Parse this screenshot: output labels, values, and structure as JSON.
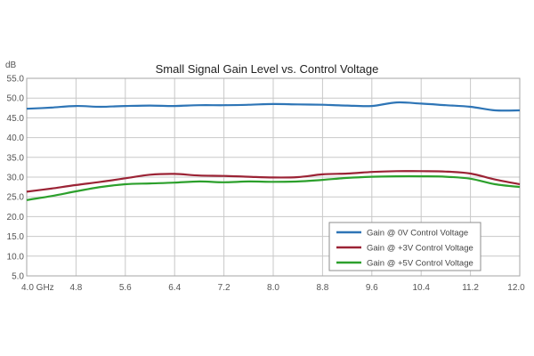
{
  "chart_data": {
    "type": "line",
    "title": "Small Signal Gain Level vs. Control Voltage",
    "ylabel": "dB",
    "xlabel": "",
    "xlim": [
      4.0,
      12.0
    ],
    "ylim": [
      5.0,
      55.0
    ],
    "x_ticks": [
      "4.0  GHz",
      "4.8",
      "5.6",
      "6.4",
      "7.2",
      "8.0",
      "8.8",
      "9.6",
      "10.4",
      "11.2",
      "12.0"
    ],
    "x_tick_values": [
      4.0,
      4.8,
      5.6,
      6.4,
      7.2,
      8.0,
      8.8,
      9.6,
      10.4,
      11.2,
      12.0
    ],
    "y_ticks": [
      "5.0",
      "10.0",
      "15.0",
      "20.0",
      "25.0",
      "30.0",
      "35.0",
      "40.0",
      "45.0",
      "50.0",
      "55.0"
    ],
    "y_tick_values": [
      5,
      10,
      15,
      20,
      25,
      30,
      35,
      40,
      45,
      50,
      55
    ],
    "grid": true,
    "legend_position": "bottom-right",
    "x": [
      4.0,
      4.4,
      4.8,
      5.2,
      5.6,
      6.0,
      6.4,
      6.8,
      7.2,
      7.6,
      8.0,
      8.4,
      8.8,
      9.2,
      9.6,
      10.0,
      10.4,
      10.8,
      11.2,
      11.6,
      12.0
    ],
    "series": [
      {
        "name": "Gain @ 0V Control Voltage",
        "color": "#2E75B6",
        "values": [
          47.3,
          47.6,
          48.0,
          47.8,
          48.0,
          48.1,
          48.0,
          48.2,
          48.2,
          48.3,
          48.5,
          48.4,
          48.3,
          48.1,
          48.0,
          48.9,
          48.6,
          48.2,
          47.8,
          46.9,
          46.9
        ]
      },
      {
        "name": "Gain @ +3V Control Voltage",
        "color": "#9B2335",
        "values": [
          26.3,
          27.1,
          28.0,
          28.8,
          29.7,
          30.6,
          30.8,
          30.4,
          30.3,
          30.1,
          29.9,
          30.0,
          30.7,
          30.9,
          31.3,
          31.5,
          31.5,
          31.4,
          30.9,
          29.4,
          28.2
        ]
      },
      {
        "name": "Gain @ +5V Control Voltage",
        "color": "#2CA02C",
        "values": [
          24.2,
          25.2,
          26.4,
          27.5,
          28.2,
          28.4,
          28.6,
          28.9,
          28.7,
          28.9,
          28.8,
          28.9,
          29.3,
          29.8,
          30.1,
          30.2,
          30.2,
          30.1,
          29.6,
          28.2,
          27.5
        ]
      }
    ]
  }
}
